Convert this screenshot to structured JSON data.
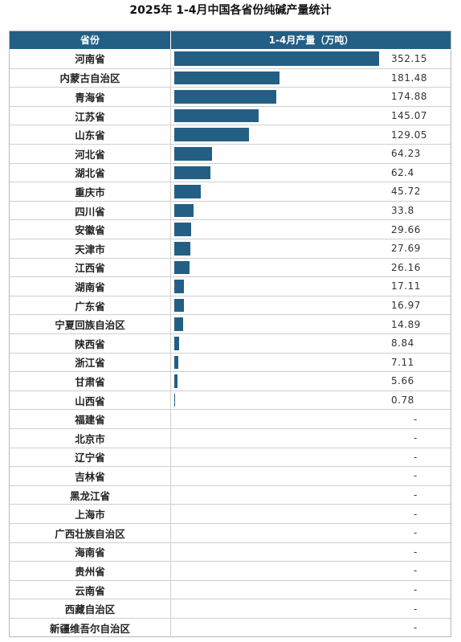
{
  "title": "2025年 1-4月中国各省份纯碱产量统计",
  "header": {
    "province": "省份",
    "value": "1-4月产量（万吨）"
  },
  "colors": {
    "header_bg": "#235f84",
    "bar": "#235f84"
  },
  "chart_data": {
    "type": "bar",
    "orientation": "horizontal",
    "title": "2025年 1-4月中国各省份纯碱产量统计",
    "categories": [
      "河南省",
      "内蒙古自治区",
      "青海省",
      "江苏省",
      "山东省",
      "河北省",
      "湖北省",
      "重庆市",
      "四川省",
      "安徽省",
      "天津市",
      "江西省",
      "湖南省",
      "广东省",
      "宁夏回族自治区",
      "陕西省",
      "浙江省",
      "甘肃省",
      "山西省",
      "福建省",
      "北京市",
      "辽宁省",
      "吉林省",
      "黑龙江省",
      "上海市",
      "广西壮族自治区",
      "海南省",
      "贵州省",
      "云南省",
      "西藏自治区",
      "新疆维吾尔自治区"
    ],
    "values": [
      352.15,
      181.48,
      174.88,
      145.07,
      129.05,
      64.23,
      62.4,
      45.72,
      33.8,
      29.66,
      27.69,
      26.16,
      17.11,
      16.97,
      14.89,
      8.84,
      7.11,
      5.66,
      0.78,
      null,
      null,
      null,
      null,
      null,
      null,
      null,
      null,
      null,
      null,
      null,
      null
    ],
    "value_labels": [
      "352.15",
      "181.48",
      "174.88",
      "145.07",
      "129.05",
      "64.23",
      "62.4",
      "45.72",
      "33.8",
      "29.66",
      "27.69",
      "26.16",
      "17.11",
      "16.97",
      "14.89",
      "8.84",
      "7.11",
      "5.66",
      "0.78",
      "-",
      "-",
      "-",
      "-",
      "-",
      "-",
      "-",
      "-",
      "-",
      "-",
      "-",
      "-"
    ],
    "ylabel": "1-4月产量（万吨）",
    "xlim": [
      0,
      352.15
    ]
  }
}
